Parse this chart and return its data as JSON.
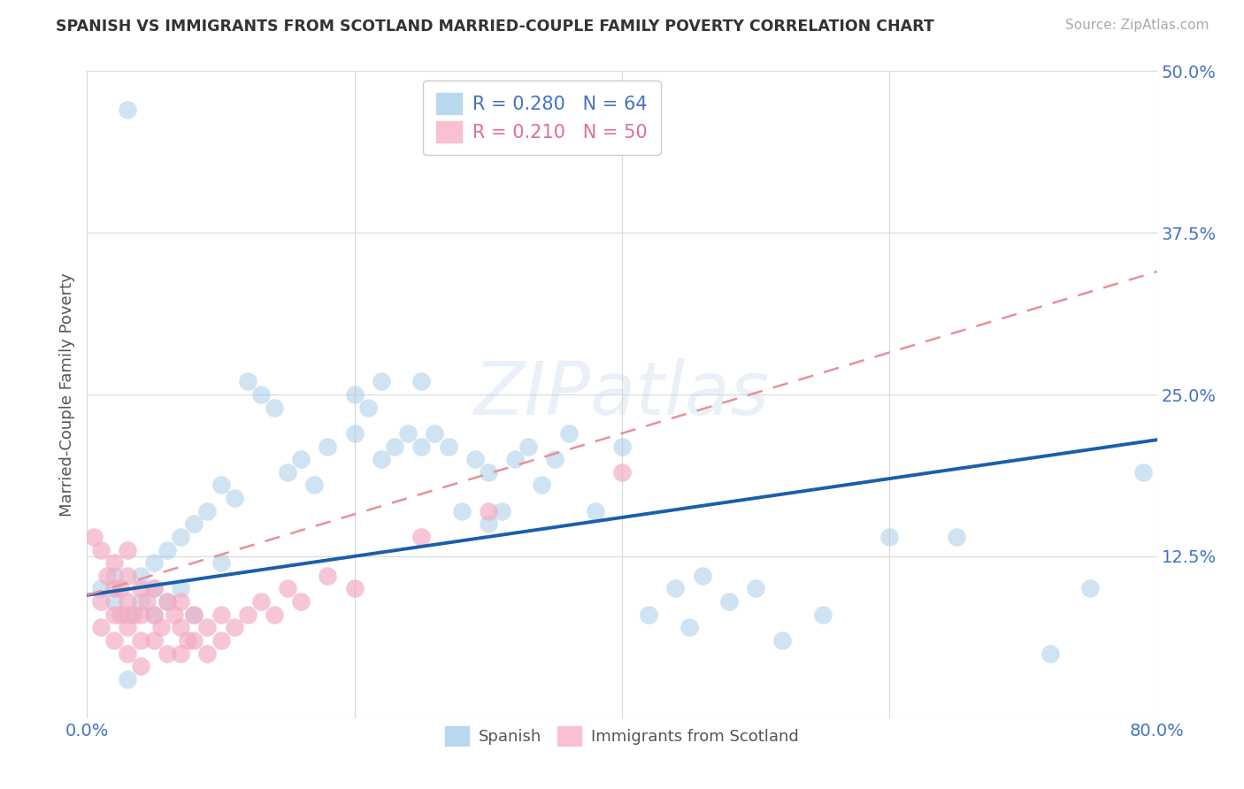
{
  "title": "SPANISH VS IMMIGRANTS FROM SCOTLAND MARRIED-COUPLE FAMILY POVERTY CORRELATION CHART",
  "source": "Source: ZipAtlas.com",
  "ylabel": "Married-Couple Family Poverty",
  "xlim": [
    0,
    0.8
  ],
  "ylim": [
    0,
    0.5
  ],
  "xticks": [
    0.0,
    0.2,
    0.4,
    0.6,
    0.8
  ],
  "xticklabels": [
    "0.0%",
    "",
    "",
    "",
    "80.0%"
  ],
  "yticks": [
    0.0,
    0.125,
    0.25,
    0.375,
    0.5
  ],
  "yticklabels": [
    "",
    "12.5%",
    "25.0%",
    "37.5%",
    "50.0%"
  ],
  "watermark": "ZIPatlas",
  "spanish_color": "#a8cce8",
  "scotland_color": "#f4a8c0",
  "spanish_line_color": "#1a5faa",
  "scotland_line_color": "#e8909a",
  "grid_color": "#d8d8d8",
  "spanish_line_x0": 0.0,
  "spanish_line_y0": 0.095,
  "spanish_line_x1": 0.8,
  "spanish_line_y1": 0.215,
  "scotland_line_x0": 0.0,
  "scotland_line_y0": 0.095,
  "scotland_line_x1": 0.8,
  "scotland_line_y1": 0.345,
  "spanish_x": [
    0.01,
    0.02,
    0.02,
    0.03,
    0.03,
    0.04,
    0.04,
    0.05,
    0.05,
    0.05,
    0.06,
    0.06,
    0.07,
    0.07,
    0.08,
    0.08,
    0.09,
    0.1,
    0.1,
    0.11,
    0.12,
    0.13,
    0.14,
    0.15,
    0.16,
    0.17,
    0.18,
    0.2,
    0.21,
    0.22,
    0.22,
    0.23,
    0.24,
    0.25,
    0.26,
    0.27,
    0.28,
    0.29,
    0.3,
    0.31,
    0.32,
    0.33,
    0.34,
    0.35,
    0.36,
    0.38,
    0.4,
    0.42,
    0.44,
    0.45,
    0.46,
    0.48,
    0.5,
    0.52,
    0.55,
    0.6,
    0.65,
    0.72,
    0.75,
    0.79,
    0.03,
    0.2,
    0.25,
    0.3
  ],
  "spanish_y": [
    0.1,
    0.09,
    0.11,
    0.47,
    0.08,
    0.09,
    0.11,
    0.1,
    0.12,
    0.08,
    0.13,
    0.09,
    0.14,
    0.1,
    0.15,
    0.08,
    0.16,
    0.18,
    0.12,
    0.17,
    0.26,
    0.25,
    0.24,
    0.19,
    0.2,
    0.18,
    0.21,
    0.22,
    0.24,
    0.26,
    0.2,
    0.21,
    0.22,
    0.21,
    0.22,
    0.21,
    0.16,
    0.2,
    0.19,
    0.16,
    0.2,
    0.21,
    0.18,
    0.2,
    0.22,
    0.16,
    0.21,
    0.08,
    0.1,
    0.07,
    0.11,
    0.09,
    0.1,
    0.06,
    0.08,
    0.14,
    0.14,
    0.05,
    0.1,
    0.19,
    0.03,
    0.25,
    0.26,
    0.15
  ],
  "scotland_x": [
    0.005,
    0.01,
    0.01,
    0.01,
    0.015,
    0.02,
    0.02,
    0.02,
    0.02,
    0.025,
    0.025,
    0.03,
    0.03,
    0.03,
    0.03,
    0.03,
    0.035,
    0.04,
    0.04,
    0.04,
    0.04,
    0.045,
    0.05,
    0.05,
    0.05,
    0.055,
    0.06,
    0.06,
    0.065,
    0.07,
    0.07,
    0.07,
    0.075,
    0.08,
    0.08,
    0.09,
    0.09,
    0.1,
    0.1,
    0.11,
    0.12,
    0.13,
    0.14,
    0.15,
    0.16,
    0.18,
    0.2,
    0.25,
    0.3,
    0.4
  ],
  "scotland_y": [
    0.14,
    0.13,
    0.09,
    0.07,
    0.11,
    0.12,
    0.1,
    0.08,
    0.06,
    0.1,
    0.08,
    0.11,
    0.09,
    0.07,
    0.05,
    0.13,
    0.08,
    0.1,
    0.08,
    0.06,
    0.04,
    0.09,
    0.08,
    0.06,
    0.1,
    0.07,
    0.09,
    0.05,
    0.08,
    0.07,
    0.05,
    0.09,
    0.06,
    0.08,
    0.06,
    0.07,
    0.05,
    0.08,
    0.06,
    0.07,
    0.08,
    0.09,
    0.08,
    0.1,
    0.09,
    0.11,
    0.1,
    0.14,
    0.16,
    0.19
  ]
}
